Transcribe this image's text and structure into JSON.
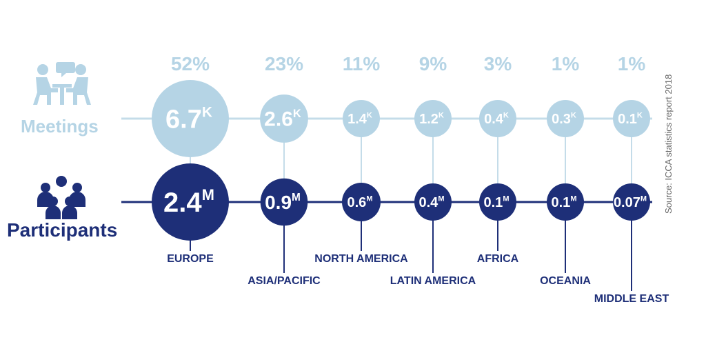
{
  "chart_data": {
    "type": "bubble",
    "categories": [
      "EUROPE",
      "ASIA/PACIFIC",
      "NORTH AMERICA",
      "LATIN AMERICA",
      "AFRICA",
      "OCEANIA",
      "MIDDLE EAST"
    ],
    "percentages": [
      "52%",
      "23%",
      "11%",
      "9%",
      "3%",
      "1%",
      "1%"
    ],
    "series": [
      {
        "name": "Meetings",
        "values": [
          6700,
          2600,
          1400,
          1200,
          400,
          300,
          100
        ],
        "labels": [
          {
            "num": "6.7",
            "unit": "K"
          },
          {
            "num": "2.6",
            "unit": "K"
          },
          {
            "num": "1.4",
            "unit": "K"
          },
          {
            "num": "1.2",
            "unit": "K"
          },
          {
            "num": "0.4",
            "unit": "K"
          },
          {
            "num": "0.3",
            "unit": "K"
          },
          {
            "num": "0.1",
            "unit": "K"
          }
        ],
        "color": "#b5d4e5"
      },
      {
        "name": "Participants",
        "values": [
          2400000,
          900000,
          600000,
          400000,
          100000,
          100000,
          70000
        ],
        "labels": [
          {
            "num": "2.4",
            "unit": "M"
          },
          {
            "num": "0.9",
            "unit": "M"
          },
          {
            "num": "0.6",
            "unit": "M"
          },
          {
            "num": "0.4",
            "unit": "M"
          },
          {
            "num": "0.1",
            "unit": "M"
          },
          {
            "num": "0.1",
            "unit": "M"
          },
          {
            "num": "0.07",
            "unit": "M"
          }
        ],
        "color": "#1e2f78"
      }
    ],
    "source": "Source: ICCA statistics report 2018"
  },
  "icons": {
    "meetings": "meeting-people-icon",
    "participants": "group-people-icon"
  },
  "colors": {
    "light": "#b5d4e5",
    "dark": "#1e2f78",
    "line_light": "#c4dce9"
  }
}
